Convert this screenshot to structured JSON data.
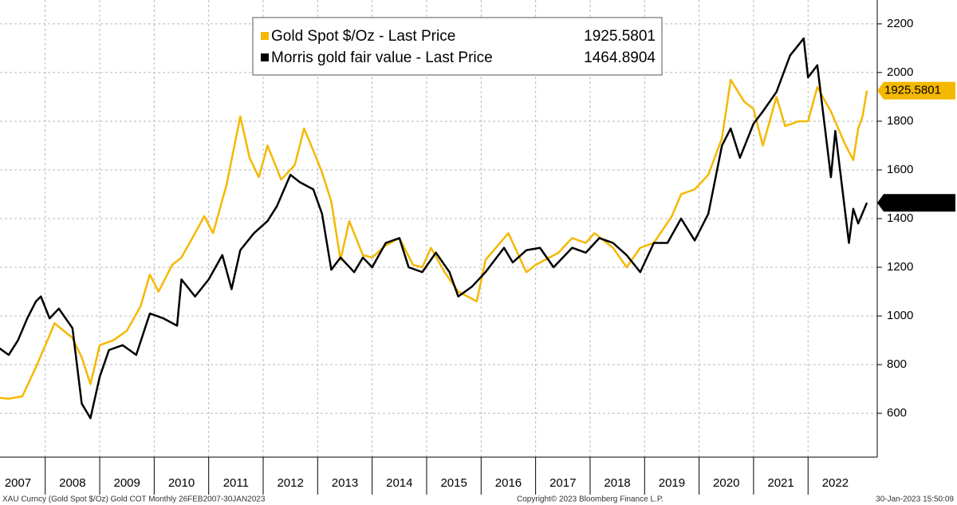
{
  "chart_data": {
    "type": "line",
    "series": [
      {
        "name": "Gold Spot $/Oz - Last Price",
        "color": "#f5b800",
        "x": [
          2007.08,
          2007.33,
          2007.58,
          2007.83,
          2008.08,
          2008.17,
          2008.5,
          2008.67,
          2008.83,
          2009.0,
          2009.25,
          2009.5,
          2009.75,
          2009.92,
          2010.08,
          2010.33,
          2010.5,
          2010.75,
          2010.92,
          2011.08,
          2011.33,
          2011.58,
          2011.75,
          2011.92,
          2012.08,
          2012.33,
          2012.58,
          2012.75,
          2012.92,
          2013.08,
          2013.25,
          2013.42,
          2013.58,
          2013.83,
          2014.0,
          2014.25,
          2014.5,
          2014.75,
          2014.92,
          2015.08,
          2015.33,
          2015.58,
          2015.92,
          2016.08,
          2016.5,
          2016.83,
          2017.0,
          2017.42,
          2017.67,
          2017.92,
          2018.08,
          2018.42,
          2018.67,
          2018.92,
          2019.17,
          2019.5,
          2019.67,
          2019.92,
          2020.17,
          2020.42,
          2020.58,
          2020.83,
          2021.0,
          2021.17,
          2021.42,
          2021.58,
          2021.83,
          2022.0,
          2022.17,
          2022.42,
          2022.67,
          2022.83,
          2022.92,
          2023.0,
          2023.08
        ],
        "values": [
          665,
          660,
          670,
          790,
          920,
          970,
          910,
          830,
          720,
          880,
          900,
          940,
          1040,
          1170,
          1100,
          1210,
          1240,
          1340,
          1410,
          1340,
          1540,
          1820,
          1650,
          1570,
          1700,
          1560,
          1620,
          1770,
          1680,
          1590,
          1470,
          1230,
          1390,
          1250,
          1240,
          1290,
          1320,
          1210,
          1200,
          1280,
          1180,
          1100,
          1060,
          1230,
          1340,
          1180,
          1210,
          1260,
          1320,
          1300,
          1340,
          1280,
          1200,
          1280,
          1300,
          1410,
          1500,
          1520,
          1580,
          1730,
          1970,
          1880,
          1850,
          1700,
          1900,
          1780,
          1800,
          1800,
          1940,
          1840,
          1710,
          1640,
          1770,
          1820,
          1925.5801
        ]
      },
      {
        "name": "Morris gold fair value - Last Price",
        "color": "#000000",
        "x": [
          2007.08,
          2007.33,
          2007.5,
          2007.67,
          2007.83,
          2007.92,
          2008.08,
          2008.25,
          2008.5,
          2008.67,
          2008.83,
          2009.0,
          2009.17,
          2009.42,
          2009.67,
          2009.92,
          2010.17,
          2010.42,
          2010.5,
          2010.75,
          2011.0,
          2011.25,
          2011.42,
          2011.58,
          2011.83,
          2012.08,
          2012.25,
          2012.5,
          2012.67,
          2012.92,
          2013.08,
          2013.25,
          2013.42,
          2013.67,
          2013.83,
          2014.0,
          2014.25,
          2014.5,
          2014.67,
          2014.92,
          2015.17,
          2015.42,
          2015.58,
          2015.83,
          2016.08,
          2016.42,
          2016.58,
          2016.83,
          2017.08,
          2017.33,
          2017.67,
          2017.92,
          2018.17,
          2018.42,
          2018.67,
          2018.92,
          2019.17,
          2019.42,
          2019.67,
          2019.92,
          2020.17,
          2020.42,
          2020.58,
          2020.75,
          2021.0,
          2021.17,
          2021.42,
          2021.67,
          2021.92,
          2022.0,
          2022.17,
          2022.42,
          2022.5,
          2022.75,
          2022.83,
          2022.92,
          2023.08
        ],
        "values": [
          880,
          840,
          900,
          990,
          1060,
          1080,
          990,
          1030,
          950,
          640,
          580,
          750,
          860,
          880,
          840,
          1010,
          990,
          960,
          1150,
          1080,
          1150,
          1250,
          1110,
          1270,
          1340,
          1390,
          1450,
          1580,
          1550,
          1520,
          1420,
          1190,
          1240,
          1180,
          1240,
          1200,
          1300,
          1320,
          1200,
          1180,
          1260,
          1180,
          1080,
          1120,
          1180,
          1280,
          1220,
          1270,
          1280,
          1200,
          1280,
          1260,
          1320,
          1300,
          1250,
          1180,
          1300,
          1300,
          1400,
          1310,
          1420,
          1700,
          1770,
          1650,
          1790,
          1840,
          1920,
          2070,
          2140,
          1980,
          2030,
          1570,
          1760,
          1300,
          1440,
          1380,
          1464.8904
        ]
      }
    ],
    "categories": [
      "2007",
      "2008",
      "2009",
      "2010",
      "2011",
      "2012",
      "2013",
      "2014",
      "2015",
      "2016",
      "2017",
      "2018",
      "2019",
      "2020",
      "2021",
      "2022"
    ],
    "xlim": [
      2007.17,
      2023.27
    ],
    "xticks": [
      2008,
      2009,
      2010,
      2011,
      2012,
      2013,
      2014,
      2015,
      2016,
      2017,
      2018,
      2019,
      2020,
      2021,
      2022
    ],
    "ylim": [
      420,
      2298
    ],
    "yticks": [
      600,
      800,
      1000,
      1200,
      1400,
      1600,
      1800,
      2000,
      2200
    ],
    "grid": true,
    "footer_left": "XAU Curncy (Gold Spot  $/Oz) Gold COT  Monthly 26FEB2007-30JAN2023",
    "footer_center": "Copyright© 2023 Bloomberg Finance L.P.",
    "footer_right": "30-Jan-2023 15:50:09"
  }
}
